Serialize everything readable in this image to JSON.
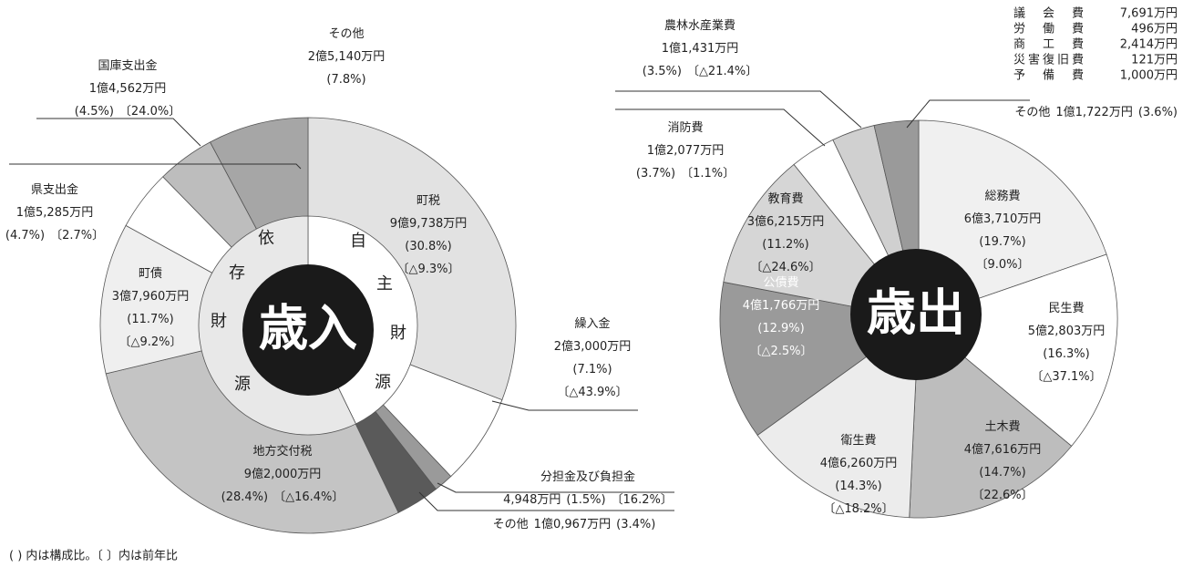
{
  "chart_data": [
    {
      "type": "donut",
      "title": "歳入",
      "categories": [
        "町税",
        "繰入金",
        "分担金及び負担金",
        "その他",
        "地方交付税",
        "町債",
        "県支出金",
        "国庫支出金",
        "その他"
      ],
      "values": [
        30.8,
        7.1,
        1.5,
        3.4,
        28.4,
        11.7,
        4.7,
        4.5,
        7.8
      ],
      "value_labels": [
        "(30.8%)",
        "(7.1%)",
        "(1.5%)",
        "(3.4%)",
        "(28.4%)",
        "(11.7%)",
        "(4.7%)",
        "(4.5%)",
        "(7.8%)"
      ],
      "amounts": [
        "9億9,738万円",
        "2億3,000万円",
        "4,948万円",
        "1億0,967万円",
        "9億2,000万円",
        "3億7,960万円",
        "1億5,285万円",
        "1億4,562万円",
        "2億5,140万円"
      ],
      "changes": [
        "〔△9.3%〕",
        "〔△43.9%〕",
        "〔16.2%〕",
        null,
        "〔△16.4%〕",
        "〔△9.2%〕",
        "〔2.7%〕",
        "〔24.0%〕",
        null
      ],
      "colors": [
        "#e2e2e2",
        "#ffffff",
        "#9a9a9a",
        "#5a5a5a",
        "#c4c4c4",
        "#efefef",
        "#ffffff",
        "#bdbdbd",
        "#a6a6a6"
      ],
      "inner": {
        "categories": [
          "自主財源",
          "依存財源"
        ],
        "values": [
          42.8,
          57.2
        ],
        "colors": [
          "#ffffff",
          "#e8e8e8"
        ]
      }
    },
    {
      "type": "pie",
      "title": "歳出",
      "categories": [
        "総務費",
        "民生費",
        "土木費",
        "衛生費",
        "公債費",
        "教育費",
        "消防費",
        "農林水産業費",
        "その他"
      ],
      "values": [
        19.7,
        16.3,
        14.7,
        14.3,
        12.9,
        11.2,
        3.7,
        3.5,
        3.6
      ],
      "value_labels": [
        "(19.7%)",
        "(16.3%)",
        "(14.7%)",
        "(14.3%)",
        "(12.9%)",
        "(11.2%)",
        "(3.7%)",
        "(3.5%)",
        "(3.6%)"
      ],
      "amounts": [
        "6億3,710万円",
        "5億2,803万円",
        "4億7,616万円",
        "4億6,260万円",
        "4億1,766万円",
        "3億6,215万円",
        "1億2,077万円",
        "1億1,431万円",
        "1億1,722万円"
      ],
      "changes": [
        "〔9.0%〕",
        "〔△37.1%〕",
        "〔22.6%〕",
        "〔△18.2%〕",
        "〔△2.5%〕",
        "〔△24.6%〕",
        "〔1.1%〕",
        "〔△21.4%〕",
        null
      ],
      "colors": [
        "#f0f0f0",
        "#ffffff",
        "#bdbdbd",
        "#ececec",
        "#9a9a9a",
        "#d6d6d6",
        "#ffffff",
        "#d0d0d0",
        "#9a9a9a"
      ],
      "other_breakdown": [
        {
          "name": "議　会　費",
          "amount": "7,691万円"
        },
        {
          "name": "労　働　費",
          "amount": "496万円"
        },
        {
          "name": "商　工　費",
          "amount": "2,414万円"
        },
        {
          "name": "災害復旧費",
          "amount": "121万円"
        },
        {
          "name": "予　備　費",
          "amount": "1,000万円"
        }
      ]
    }
  ],
  "note": "( ) 内は構成比。〔 〕内は前年比"
}
